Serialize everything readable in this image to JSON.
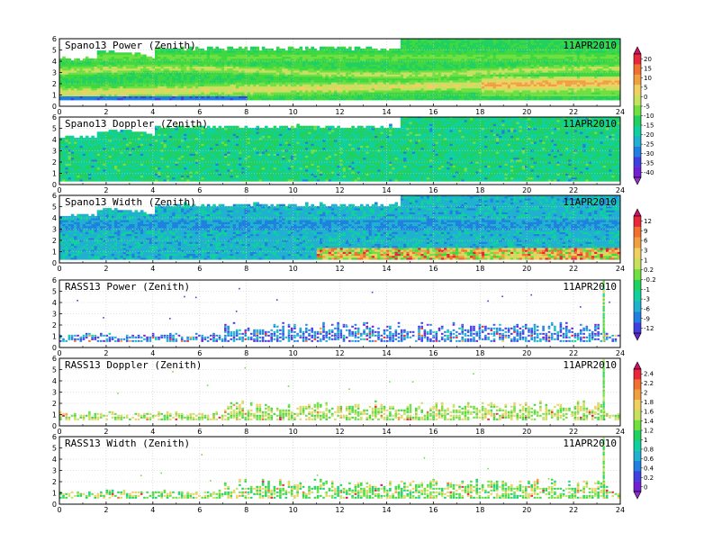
{
  "chart_data": [
    {
      "type": "heatmap",
      "title": "Spano13 Power (Zenith)",
      "date": "11APR2010",
      "x_ticks": [
        "0",
        "2",
        "4",
        "6",
        "8",
        "10",
        "12",
        "14",
        "16",
        "18",
        "20",
        "22",
        "24"
      ],
      "y_ticks": [
        "0",
        "1",
        "2",
        "3",
        "4",
        "5",
        "6"
      ],
      "xlim": [
        0,
        24
      ],
      "ylim": [
        0,
        6
      ],
      "colorbar": "cb1",
      "pattern": "power",
      "grid": true
    },
    {
      "type": "heatmap",
      "title": "Spano13 Doppler (Zenith)",
      "date": "11APR2010",
      "x_ticks": [
        "0",
        "2",
        "4",
        "6",
        "8",
        "10",
        "12",
        "14",
        "16",
        "18",
        "20",
        "22",
        "24"
      ],
      "y_ticks": [
        "0",
        "1",
        "2",
        "3",
        "4",
        "5",
        "6"
      ],
      "xlim": [
        0,
        24
      ],
      "ylim": [
        0,
        6
      ],
      "colorbar": "cb1",
      "pattern": "doppler",
      "grid": true
    },
    {
      "type": "heatmap",
      "title": "Spano13 Width (Zenith)",
      "date": "11APR2010",
      "x_ticks": [
        "0",
        "2",
        "4",
        "6",
        "8",
        "10",
        "12",
        "14",
        "16",
        "18",
        "20",
        "22",
        "24"
      ],
      "y_ticks": [
        "0",
        "1",
        "2",
        "3",
        "4",
        "5",
        "6"
      ],
      "xlim": [
        0,
        24
      ],
      "ylim": [
        0,
        6
      ],
      "colorbar": "cb2",
      "pattern": "width",
      "grid": true
    },
    {
      "type": "heatmap",
      "title": "RASS13 Power (Zenith)",
      "date": "11APR2010",
      "x_ticks": [
        "0",
        "2",
        "4",
        "6",
        "8",
        "10",
        "12",
        "14",
        "16",
        "18",
        "20",
        "22",
        "24"
      ],
      "y_ticks": [
        "0",
        "1",
        "2",
        "3",
        "4",
        "5",
        "6"
      ],
      "xlim": [
        0,
        24
      ],
      "ylim": [
        0,
        6
      ],
      "colorbar": "cb2",
      "pattern": "rass_power",
      "grid": true
    },
    {
      "type": "heatmap",
      "title": "RASS13 Doppler (Zenith)",
      "date": "11APR2010",
      "x_ticks": [
        "0",
        "2",
        "4",
        "6",
        "8",
        "10",
        "12",
        "14",
        "16",
        "18",
        "20",
        "22",
        "24"
      ],
      "y_ticks": [
        "0",
        "1",
        "2",
        "3",
        "4",
        "5",
        "6"
      ],
      "xlim": [
        0,
        24
      ],
      "ylim": [
        0,
        6
      ],
      "colorbar": "cb3",
      "pattern": "rass_doppler",
      "grid": true
    },
    {
      "type": "heatmap",
      "title": "RASS13 Width (Zenith)",
      "date": "11APR2010",
      "x_ticks": [
        "0",
        "2",
        "4",
        "6",
        "8",
        "10",
        "12",
        "14",
        "16",
        "18",
        "20",
        "22",
        "24"
      ],
      "y_ticks": [
        "0",
        "1",
        "2",
        "3",
        "4",
        "5",
        "6"
      ],
      "xlim": [
        0,
        24
      ],
      "ylim": [
        0,
        6
      ],
      "colorbar": "cb3",
      "pattern": "rass_width",
      "grid": true
    }
  ],
  "colorbars": {
    "cb1": {
      "labels": [
        "20",
        "15",
        "10",
        "5",
        "0",
        "-5",
        "-10",
        "-15",
        "-20",
        "-25",
        "-30",
        "-35",
        "-40"
      ],
      "colors": [
        "#d01068",
        "#e8283a",
        "#f07030",
        "#f0a040",
        "#f0d060",
        "#c8e060",
        "#70e040",
        "#20d060",
        "#10d0a0",
        "#20b0d0",
        "#2080e0",
        "#4040e0",
        "#7020d0",
        "#9030c8"
      ]
    },
    "cb2": {
      "labels": [
        "12",
        "9",
        "6",
        "3",
        "1",
        "0.2",
        "-0.2",
        "-1",
        "-3",
        "-6",
        "-9",
        "-12"
      ],
      "colors": [
        "#d01068",
        "#e8283a",
        "#f07030",
        "#f0a040",
        "#f0d060",
        "#c8e060",
        "#70e040",
        "#20d060",
        "#10d0a0",
        "#20b0d0",
        "#2080e0",
        "#4040e0",
        "#7020d0"
      ]
    },
    "cb3": {
      "labels": [
        "2.4",
        "2.2",
        "2",
        "1.8",
        "1.6",
        "1.4",
        "1.2",
        "1",
        "0.8",
        "0.6",
        "0.4",
        "0.2",
        "0"
      ],
      "colors": [
        "#d01068",
        "#e8283a",
        "#f07030",
        "#f0a040",
        "#f0d060",
        "#c8e060",
        "#70e040",
        "#20d060",
        "#10d0a0",
        "#20b0d0",
        "#2080e0",
        "#4040e0",
        "#7020d0",
        "#9030c8"
      ]
    }
  }
}
